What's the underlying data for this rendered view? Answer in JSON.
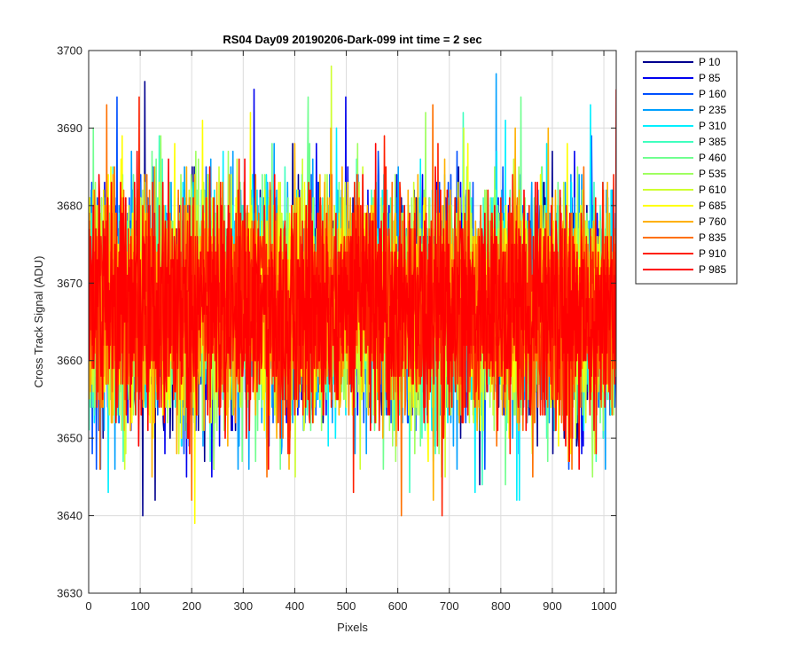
{
  "chart_data": {
    "type": "line",
    "title": "RS04 Day09 20190206-Dark-099 int time = 2 sec",
    "xlabel": "Pixels",
    "ylabel": "Cross Track Signal (ADU)",
    "xlim": [
      0,
      1024
    ],
    "ylim": [
      3630,
      3700
    ],
    "xticks": [
      0,
      100,
      200,
      300,
      400,
      500,
      600,
      700,
      800,
      900,
      1000
    ],
    "yticks": [
      3630,
      3640,
      3650,
      3660,
      3670,
      3680,
      3690,
      3700
    ],
    "grid": true,
    "legend_position": "outside-top-right",
    "x_start": 1,
    "x_end": 1024,
    "baseline": 3667,
    "typical_spread": 7,
    "series": [
      {
        "name": "P 10",
        "color": "#00008F",
        "min": 3640,
        "max": 3696
      },
      {
        "name": "P 85",
        "color": "#0000EF",
        "min": 3645,
        "max": 3695
      },
      {
        "name": "P 160",
        "color": "#0050FF",
        "min": 3646,
        "max": 3694
      },
      {
        "name": "P 235",
        "color": "#00A0FF",
        "min": 3646,
        "max": 3697
      },
      {
        "name": "P 310",
        "color": "#00EFFF",
        "min": 3642,
        "max": 3693
      },
      {
        "name": "P 385",
        "color": "#40FFBF",
        "min": 3643,
        "max": 3692
      },
      {
        "name": "P 460",
        "color": "#70FF8F",
        "min": 3644,
        "max": 3694
      },
      {
        "name": "P 535",
        "color": "#9FFF60",
        "min": 3645,
        "max": 3692
      },
      {
        "name": "P 610",
        "color": "#CFFF30",
        "min": 3645,
        "max": 3698
      },
      {
        "name": "P 685",
        "color": "#FFFF00",
        "min": 3639,
        "max": 3692
      },
      {
        "name": "P 760",
        "color": "#FFB000",
        "min": 3642,
        "max": 3690
      },
      {
        "name": "P 835",
        "color": "#FF7000",
        "min": 3640,
        "max": 3693
      },
      {
        "name": "P 910",
        "color": "#FF2000",
        "min": 3640,
        "max": 3694
      },
      {
        "name": "P 985",
        "color": "#FF0000",
        "min": 3646,
        "max": 3695
      }
    ]
  }
}
